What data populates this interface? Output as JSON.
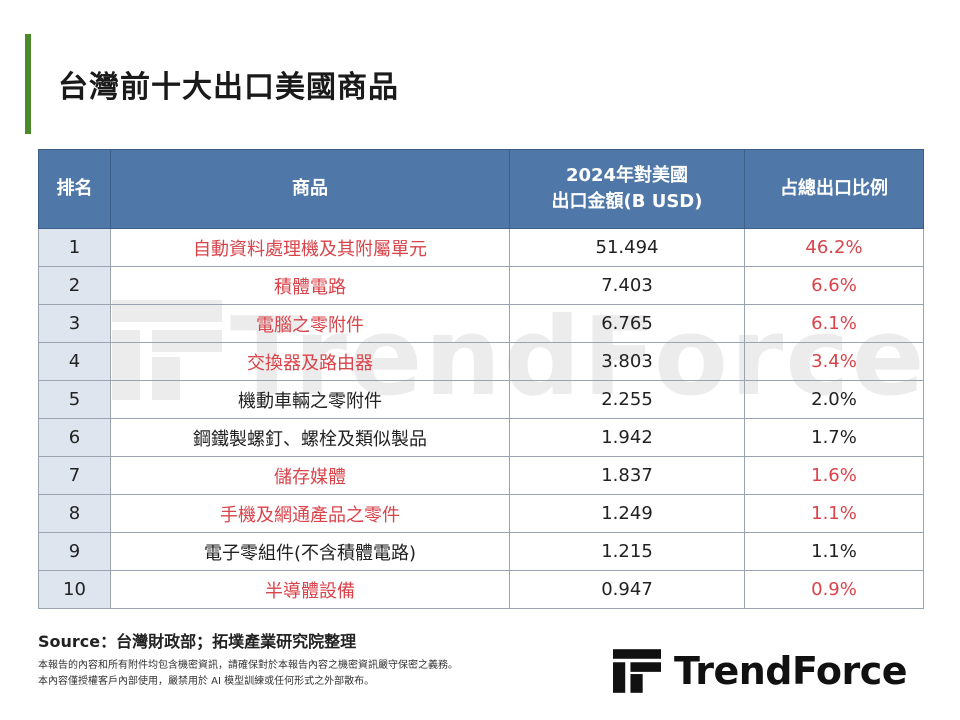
{
  "title": "台灣前十大出口美國商品",
  "watermark": "TrendForce",
  "table": {
    "headers": [
      "排名",
      "商品",
      "2024年對美國",
      "出口金額(B USD)",
      "占總出口比例"
    ],
    "rows": [
      {
        "rank": "1",
        "product": "自動資料處理機及其附屬單元",
        "value": "51.494",
        "share": "46.2%",
        "highlight": true
      },
      {
        "rank": "2",
        "product": "積體電路",
        "value": "7.403",
        "share": "6.6%",
        "highlight": true
      },
      {
        "rank": "3",
        "product": "電腦之零附件",
        "value": "6.765",
        "share": "6.1%",
        "highlight": true
      },
      {
        "rank": "4",
        "product": "交換器及路由器",
        "value": "3.803",
        "share": "3.4%",
        "highlight": true
      },
      {
        "rank": "5",
        "product": "機動車輛之零附件",
        "value": "2.255",
        "share": "2.0%",
        "highlight": false
      },
      {
        "rank": "6",
        "product": "鋼鐵製螺釘、螺栓及類似製品",
        "value": "1.942",
        "share": "1.7%",
        "highlight": false
      },
      {
        "rank": "7",
        "product": "儲存媒體",
        "value": "1.837",
        "share": "1.6%",
        "highlight": true
      },
      {
        "rank": "8",
        "product": "手機及網通產品之零件",
        "value": "1.249",
        "share": "1.1%",
        "highlight": true
      },
      {
        "rank": "9",
        "product": "電子零組件(不含積體電路)",
        "value": "1.215",
        "share": "1.1%",
        "highlight": false
      },
      {
        "rank": "10",
        "product": "半導體設備",
        "value": "0.947",
        "share": "0.9%",
        "highlight": true
      }
    ]
  },
  "source": "Source：台灣財政部；拓墣產業研究院整理",
  "disclaimer": [
    "本報告的內容和所有附件均包含機密資訊，請確保對於本報告內容之機密資訊嚴守保密之義務。",
    "本內容僅授權客戶內部使用，嚴禁用於 AI 模型訓練或任何形式之外部散布。"
  ],
  "logo": "TrendForce",
  "colors": {
    "header_bg": "#4f78a8",
    "rank_bg": "#dfe5ee",
    "highlight_text": "#d9434a",
    "accent_bar": "#4a8a2a"
  }
}
